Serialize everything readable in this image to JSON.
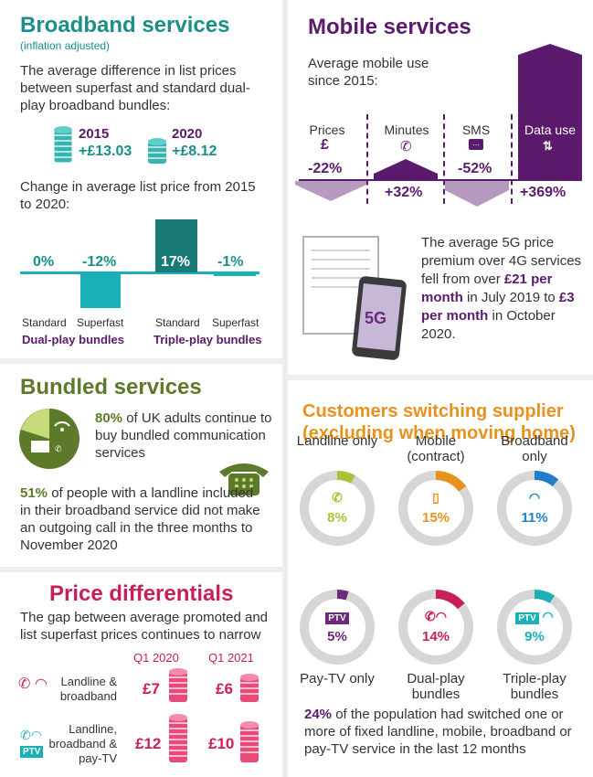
{
  "broadband": {
    "title": "Broadband services",
    "subtitle": "(inflation adjusted)",
    "intro": "The average difference in list prices between superfast and standard dual-play broadband bundles:",
    "y2015": "2015",
    "v2015": "+£13.03",
    "y2020": "2020",
    "v2020": "+£8.12",
    "change_title": "Change in average list price from 2015 to 2020:",
    "bars": [
      {
        "label": "Standard",
        "value": "0%"
      },
      {
        "label": "Superfast",
        "value": "-12%"
      },
      {
        "label": "Standard",
        "value": "17%"
      },
      {
        "label": "Superfast",
        "value": "-1%"
      }
    ],
    "group1": "Dual-play bundles",
    "group2": "Triple-play bundles"
  },
  "mobile": {
    "title": "Mobile services",
    "intro": "Average mobile use since 2015:",
    "items": [
      {
        "label": "Prices",
        "icon": "pound-icon",
        "value": "-22%"
      },
      {
        "label": "Minutes",
        "icon": "phone-icon",
        "value": "+32%"
      },
      {
        "label": "SMS",
        "icon": "sms-icon",
        "value": "-52%"
      },
      {
        "label": "Data use",
        "icon": "data-arrows-icon",
        "value": "+369%"
      }
    ],
    "badge": "5G",
    "t1": "The average 5G price premium over 4G services fell from over",
    "b1": "£21 per month",
    "t2": "in July 2019 to",
    "b2": "£3 per month",
    "t3": "in October 2020."
  },
  "bundled": {
    "title": "Bundled services",
    "p1_bold": "80%",
    "p1": "of UK adults continue to buy bundled communication services",
    "p2_bold": "51%",
    "p2": "of people with a landline included in their broadband service did not make an outgoing call in the three months to November 2020"
  },
  "price_diff": {
    "title": "Price differentials",
    "intro": "The gap between average promoted and list superfast prices continues to narrow",
    "col1": "Q1 2020",
    "col2": "Q1 2021",
    "rows": [
      {
        "label": "Landline & broadband",
        "v1": "£7",
        "v2": "£6"
      },
      {
        "label": "Landline, broadband & pay-TV",
        "v1": "£12",
        "v2": "£10"
      }
    ],
    "ptv": "PTV"
  },
  "switching": {
    "title": "Customers switching supplier (excluding when moving home)",
    "rings": [
      {
        "label": "Landline only",
        "value": "8%",
        "percent": 8,
        "color": "#a8c23a"
      },
      {
        "label": "Mobile (contract)",
        "value": "15%",
        "percent": 15,
        "color": "#e8921e"
      },
      {
        "label": "Broadband only",
        "value": "11%",
        "percent": 11,
        "color": "#1e7fc8"
      },
      {
        "label": "Pay-TV only",
        "value": "5%",
        "percent": 5,
        "color": "#6b2a7b"
      },
      {
        "label": "Dual-play bundles",
        "value": "14%",
        "percent": 14,
        "color": "#c81e5a"
      },
      {
        "label": "Triple-play bundles",
        "value": "9%",
        "percent": 9,
        "color": "#1ab0b8"
      }
    ],
    "ptv": "PTV",
    "footer_bold": "24%",
    "footer": "of the population had switched one or more of fixed landline, mobile, broadband or pay-TV service in the last 12 months"
  }
}
